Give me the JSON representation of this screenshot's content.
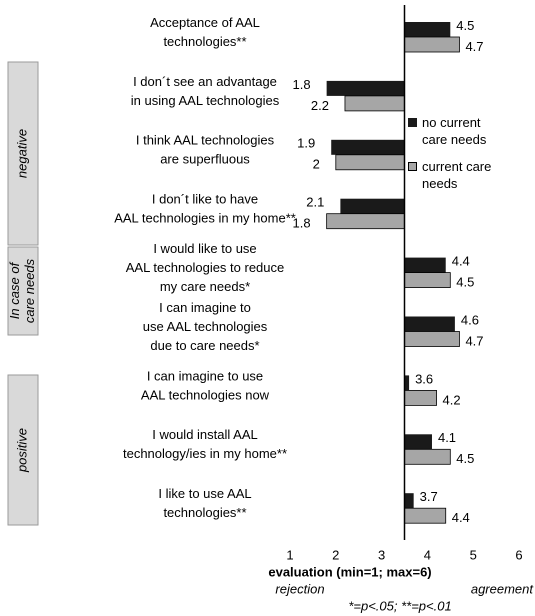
{
  "chart_data": {
    "type": "bar",
    "orientation": "horizontal",
    "categories": [
      [
        "Acceptance of AAL",
        "technologies**"
      ],
      [
        "I don´t see an advantage",
        "in using AAL technologies"
      ],
      [
        "I think AAL technologies",
        "are superfluous"
      ],
      [
        "I don´t like to have",
        "AAL technologies in my home**"
      ],
      [
        "I would like to use",
        "AAL technologies to reduce",
        "my care needs*"
      ],
      [
        "I can imagine to",
        "use AAL technologies",
        "due to care needs*"
      ],
      [
        "I can imagine to use",
        "AAL technologies now"
      ],
      [
        "I would install AAL",
        "technology/ies in my home**"
      ],
      [
        "I like to use AAL",
        "technologies**"
      ]
    ],
    "groups": [
      {
        "label": "negative"
      },
      {
        "label": [
          "In case of",
          "care needs"
        ]
      },
      {
        "label": "positive"
      }
    ],
    "series": [
      {
        "name": "no current care needs",
        "color": "#1a1a1a",
        "values": [
          4.5,
          1.8,
          1.9,
          2.1,
          4.4,
          4.6,
          3.6,
          4.1,
          3.7
        ]
      },
      {
        "name": "current care needs",
        "color": "#a6a6a6",
        "values": [
          4.7,
          2.2,
          2,
          1.8,
          4.5,
          4.7,
          4.2,
          4.5,
          4.4
        ]
      }
    ],
    "baseline": 3.5,
    "xlim": [
      1,
      6
    ],
    "xticks": [
      1,
      2,
      3,
      4,
      5,
      6
    ],
    "xlabel": "evaluation (min=1; max=6)",
    "x_left_label": "rejection",
    "x_right_label": "agreement",
    "note": "*=p<.05; **=p<.01",
    "legend": "right"
  }
}
